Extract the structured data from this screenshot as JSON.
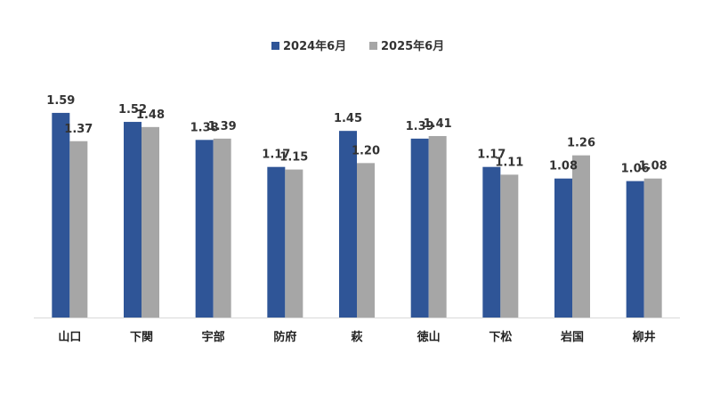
{
  "chart_data": {
    "type": "bar",
    "title": "",
    "xlabel": "",
    "ylabel": "",
    "categories": [
      "山口",
      "下関",
      "宇部",
      "防府",
      "萩",
      "徳山",
      "下松",
      "岩国",
      "柳井"
    ],
    "series": [
      {
        "name": "2024年6月",
        "color": "#2F5597",
        "values": [
          1.59,
          1.52,
          1.38,
          1.17,
          1.45,
          1.39,
          1.17,
          1.08,
          1.06
        ],
        "labels": [
          "1.59",
          "1.52",
          "1.38",
          "1.17",
          "1.45",
          "1.39",
          "1.17",
          "1.08",
          "1.06"
        ]
      },
      {
        "name": "2025年6月",
        "color": "#A6A6A6",
        "values": [
          1.37,
          1.48,
          1.39,
          1.15,
          1.2,
          1.41,
          1.11,
          1.26,
          1.08
        ],
        "labels": [
          "1.37",
          "1.48",
          "1.39",
          "1.15",
          "1.20",
          "1.41",
          "1.11",
          "1.26",
          "1.08"
        ]
      }
    ],
    "ylim": [
      0,
      1.7
    ],
    "grid": false,
    "legend_position": "top-center",
    "axis_color": "#D9D9D9"
  }
}
